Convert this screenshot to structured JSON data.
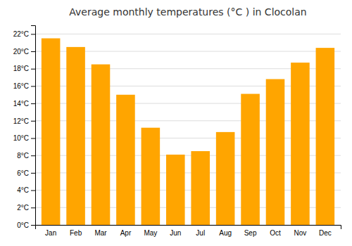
{
  "chart_data": {
    "type": "bar",
    "title": "Average monthly temperatures (°C ) in Clocolan",
    "categories": [
      "Jan",
      "Feb",
      "Mar",
      "Apr",
      "May",
      "Jun",
      "Jul",
      "Aug",
      "Sep",
      "Oct",
      "Nov",
      "Dec"
    ],
    "values": [
      21.5,
      20.5,
      18.5,
      15.0,
      11.2,
      8.1,
      8.5,
      10.7,
      15.1,
      16.8,
      18.7,
      20.4
    ],
    "color": "#FFA500",
    "ylim": [
      0,
      23
    ],
    "yticks": [
      {
        "value": 0,
        "label": "0°C"
      },
      {
        "value": 2,
        "label": "2°C"
      },
      {
        "value": 4,
        "label": "4°C"
      },
      {
        "value": 6,
        "label": "6°C"
      },
      {
        "value": 8,
        "label": "8°C"
      },
      {
        "value": 10,
        "label": "10°C"
      },
      {
        "value": 12,
        "label": "12°C"
      },
      {
        "value": 14,
        "label": "14°C"
      },
      {
        "value": 16,
        "label": "16°C"
      },
      {
        "value": 18,
        "label": "18°C"
      },
      {
        "value": 20,
        "label": "20°C"
      },
      {
        "value": 22,
        "label": "22°C"
      }
    ],
    "grid": true
  }
}
